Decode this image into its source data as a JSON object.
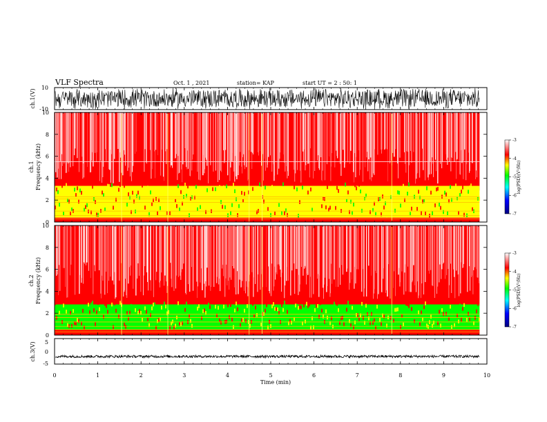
{
  "header": {
    "title": "VLF Spectra",
    "date": "Oct. 1 , 2021",
    "station": "station= KAP",
    "start_ut": "start UT = 2 : 50: 1"
  },
  "colors": {
    "background": "#ffffff",
    "trace": "#000000",
    "spectrogram_high": "#ff0000",
    "spectrogram_mid": "#ffff00",
    "spectrogram_green": "#00ff00",
    "colormap": [
      "#000080",
      "#0000ff",
      "#00ffff",
      "#00ff00",
      "#ffff00",
      "#ff0000",
      "#ffffff"
    ]
  },
  "chart_data": [
    {
      "type": "line",
      "panel": "ch.1 waveform",
      "ylabel": "ch.1(V)",
      "ylim": [
        -10,
        10
      ],
      "yticks": [
        "10",
        "-10"
      ],
      "xlim": [
        0,
        10
      ],
      "description_values": {
        "amplitude_range": [
          -10,
          10
        ],
        "duration_min": 9.83
      }
    },
    {
      "type": "heatmap",
      "panel": "ch.1 spectrogram",
      "ylabel": "ch.1 Frequency (kHz)",
      "ylabel_lines": [
        "ch.1",
        "Frequency (kHz)"
      ],
      "ylim": [
        0,
        10
      ],
      "yticks": [
        "0",
        "2",
        "4",
        "6",
        "8",
        "10"
      ],
      "xlim": [
        0,
        10
      ],
      "bands_khz": [
        {
          "range": [
            3.0,
            10.0
          ],
          "level": "high",
          "color": "#ff0000"
        },
        {
          "range": [
            0.4,
            3.3
          ],
          "level": "mid",
          "color": "#ffff00"
        },
        {
          "range": [
            0.0,
            0.4
          ],
          "level": "lines",
          "color": "#ff0000"
        }
      ],
      "narrowband_lines_khz": [
        5.5,
        2.3,
        2.1,
        1.8,
        1.0,
        0.6,
        0.3
      ],
      "colorbar": {
        "label": "log(PSD)(V²/Hz)",
        "ticks": [
          "-3",
          "-4",
          "-5",
          "-6",
          "-7"
        ],
        "range": [
          -7,
          -3
        ]
      }
    },
    {
      "type": "heatmap",
      "panel": "ch.2 spectrogram",
      "ylabel": "ch.2 Frequency (kHz)",
      "ylabel_lines": [
        "ch.2",
        "Frequency (kHz)"
      ],
      "ylim": [
        0,
        10
      ],
      "yticks": [
        "0",
        "2",
        "4",
        "6",
        "8",
        "10"
      ],
      "xlim": [
        0,
        10
      ],
      "bands_khz": [
        {
          "range": [
            2.8,
            10.0
          ],
          "level": "high",
          "color": "#ff0000"
        },
        {
          "range": [
            0.5,
            2.8
          ],
          "level": "green",
          "color": "#00ff00"
        },
        {
          "range": [
            0.0,
            0.5
          ],
          "level": "lines",
          "color": "#ff0000"
        }
      ],
      "narrowband_lines_khz": [
        1.9,
        1.6,
        1.2,
        0.8,
        0.5,
        0.3
      ],
      "colorbar": {
        "label": "log(PSD)(V²/Hz)",
        "ticks": [
          "-3",
          "-4",
          "-5",
          "-6",
          "-7"
        ],
        "range": [
          -7,
          -3
        ]
      }
    },
    {
      "type": "line",
      "panel": "ch.3 waveform",
      "ylabel": "ch.3(V)",
      "ylim": [
        -5,
        5
      ],
      "yticks": [
        "5",
        "0",
        "-5"
      ],
      "xlim": [
        0,
        10
      ],
      "description_values": {
        "offset_v": -2.0,
        "amplitude_v": 0.5,
        "duration_min": 9.83
      }
    }
  ],
  "xaxis": {
    "label": "Time (min)",
    "ticks": [
      "0",
      "1",
      "2",
      "3",
      "4",
      "5",
      "6",
      "7",
      "8",
      "9",
      "10"
    ],
    "range": [
      0,
      10
    ],
    "data_end_min": 9.83
  }
}
